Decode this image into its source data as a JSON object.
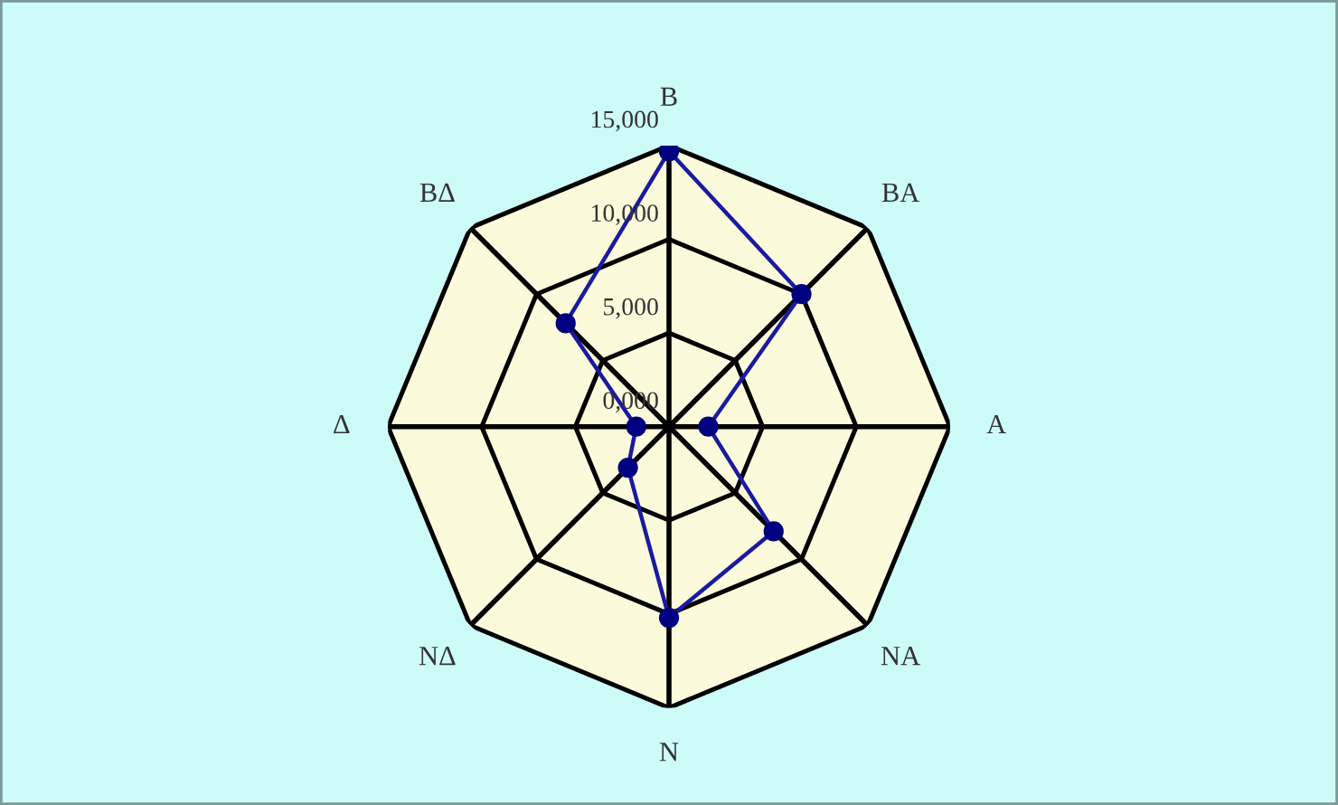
{
  "chart_data": {
    "type": "radar",
    "categories": [
      "Β",
      "ΒΑ",
      "Α",
      "ΝΑ",
      "Ν",
      "ΝΔ",
      "Δ",
      "ΒΔ"
    ],
    "series": [
      {
        "color": "#1a1aa0",
        "values": [
          14700,
          10000,
          2100,
          7900,
          10200,
          3100,
          1750,
          7800
        ]
      }
    ],
    "ylim": [
      0,
      15000
    ],
    "yticks": [
      {
        "value": 0,
        "label": "0,000"
      },
      {
        "value": 5000,
        "label": "5,000"
      },
      {
        "value": 10000,
        "label": "10,000"
      },
      {
        "value": 15000,
        "label": "15,000"
      }
    ],
    "grid": true,
    "marker": "circle",
    "line_style": "solid"
  }
}
